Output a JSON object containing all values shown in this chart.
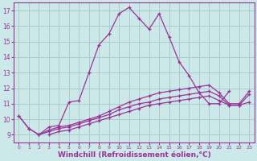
{
  "background_color": "#cce8e8",
  "grid_color": "#aacccc",
  "line_color": "#993399",
  "xlabel": "Windchill (Refroidissement éolien,°C)",
  "xlabel_fontsize": 6.5,
  "ylim": [
    8.5,
    17.5
  ],
  "xlim": [
    -0.5,
    23.5
  ],
  "yticks": [
    9,
    10,
    11,
    12,
    13,
    14,
    15,
    16,
    17
  ],
  "xticks": [
    0,
    1,
    2,
    3,
    4,
    5,
    6,
    7,
    8,
    9,
    10,
    11,
    12,
    13,
    14,
    15,
    16,
    17,
    18,
    19,
    20,
    21,
    22,
    23
  ],
  "series": [
    {
      "x": [
        0,
        1,
        2,
        3,
        4,
        5,
        6,
        7,
        8,
        9,
        10,
        11,
        12,
        13,
        14,
        15,
        16,
        17,
        18,
        19,
        20,
        21,
        22,
        23
      ],
      "y": [
        10.2,
        9.4,
        9.0,
        9.5,
        9.6,
        11.1,
        11.2,
        13.0,
        14.8,
        15.5,
        16.8,
        17.2,
        16.5,
        15.8,
        16.8,
        15.3,
        13.7,
        12.8,
        11.7,
        11.0,
        11.0,
        11.8,
        null,
        null
      ]
    },
    {
      "x": [
        0,
        1,
        2,
        3,
        4,
        5,
        6,
        7,
        8,
        9,
        10,
        11,
        12,
        13,
        14,
        15,
        16,
        17,
        18,
        19,
        20,
        21,
        22,
        23
      ],
      "y": [
        10.2,
        9.4,
        9.0,
        9.3,
        9.5,
        9.6,
        9.8,
        10.0,
        10.2,
        10.5,
        10.8,
        11.1,
        11.3,
        11.5,
        11.7,
        11.8,
        11.9,
        12.0,
        12.1,
        12.2,
        11.7,
        11.0,
        11.0,
        11.8
      ]
    },
    {
      "x": [
        0,
        1,
        2,
        3,
        4,
        5,
        6,
        7,
        8,
        9,
        10,
        11,
        12,
        13,
        14,
        15,
        16,
        17,
        18,
        19,
        20,
        21,
        22,
        23
      ],
      "y": [
        null,
        null,
        9.0,
        9.2,
        9.4,
        9.5,
        9.7,
        9.9,
        10.1,
        10.3,
        10.6,
        10.8,
        11.0,
        11.1,
        11.3,
        11.4,
        11.5,
        11.6,
        11.7,
        11.8,
        11.5,
        10.9,
        10.9,
        11.6
      ]
    },
    {
      "x": [
        0,
        1,
        2,
        3,
        4,
        5,
        6,
        7,
        8,
        9,
        10,
        11,
        12,
        13,
        14,
        15,
        16,
        17,
        18,
        19,
        20,
        21,
        22,
        23
      ],
      "y": [
        null,
        null,
        null,
        9.0,
        9.2,
        9.3,
        9.5,
        9.7,
        9.9,
        10.1,
        10.3,
        10.5,
        10.7,
        10.9,
        11.0,
        11.1,
        11.2,
        11.3,
        11.4,
        11.5,
        11.2,
        10.9,
        10.9,
        11.1
      ]
    }
  ]
}
